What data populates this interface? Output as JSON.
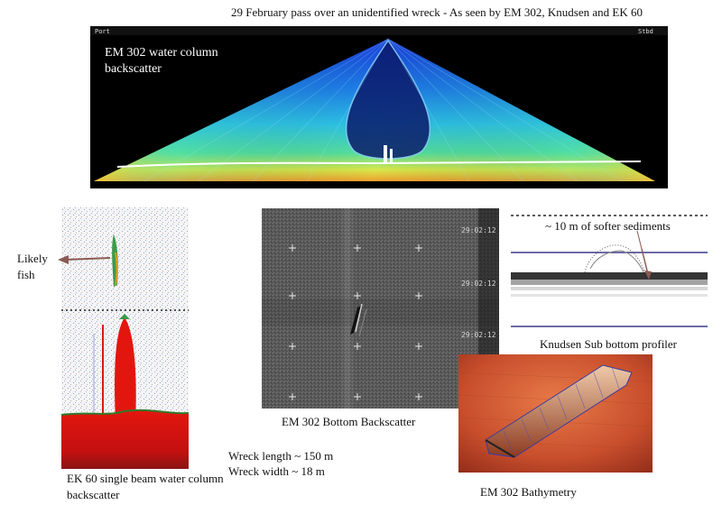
{
  "title": "29 February pass over an unidentified wreck  - As seen by EM 302, Knudsen and EK 60",
  "water_column": {
    "port_label": "Port",
    "stbd_label": "Stbd",
    "label": "EM 302 water column backscatter"
  },
  "ek60": {
    "caption": "EK 60 single beam water column backscatter",
    "fish_label": "Likely fish"
  },
  "bottom_backscatter": {
    "caption": "EM 302 Bottom Backscatter",
    "timestamps": [
      "29:02:12",
      "29:02:12",
      "29:02:12"
    ]
  },
  "knudsen": {
    "note": "~ 10 m of softer sediments",
    "caption": "Knudsen Sub bottom profiler"
  },
  "bathymetry": {
    "caption": "EM 302 Bathymetry"
  },
  "wreck": {
    "length": "Wreck length ~ 150 m",
    "width": "Wreck width ~ 18 m"
  },
  "colors": {
    "wc_background": "#000000",
    "ek60_red": "#e3160f",
    "bathy_orange": "#d8643a",
    "knudsen_line": "#3a3a8c",
    "fish_arrow": "#8a5a52"
  }
}
